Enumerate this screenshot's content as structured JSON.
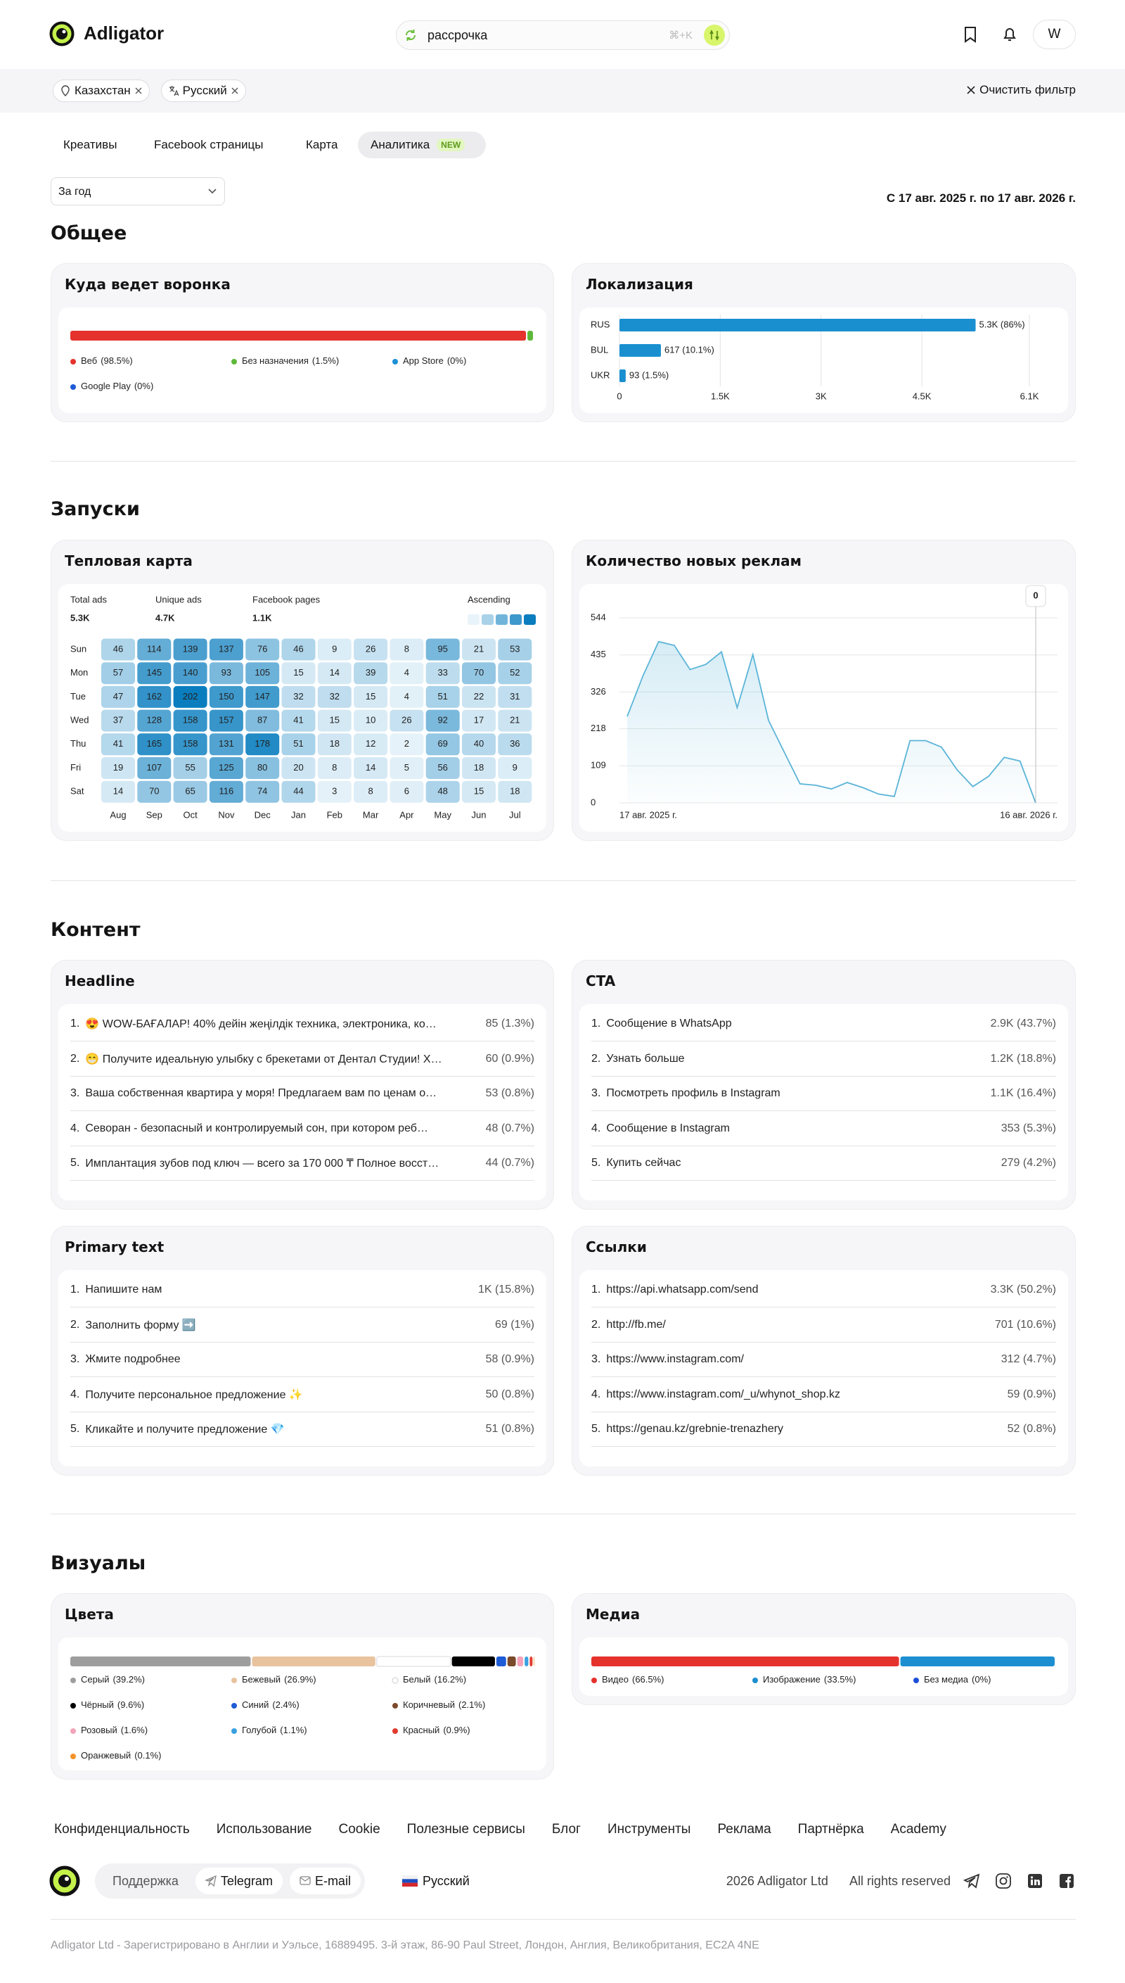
{
  "header": {
    "logo": "Adligator",
    "search": "рассрочка",
    "shortcut": "⌘+K",
    "avatar": "W"
  },
  "filters": {
    "chips": [
      "Казахстан",
      "Русский"
    ],
    "clear": "Очистить фильтр"
  },
  "tabs": {
    "items": [
      "Креативы",
      "Facebook страницы",
      "Карта",
      "Аналитика"
    ],
    "badge": "NEW",
    "active": 3
  },
  "period": {
    "select": "За год",
    "range": "С 17 авг. 2025 г. по 17 авг. 2026 г."
  },
  "sections": [
    "Общее",
    "Запуски",
    "Контент",
    "Визуалы"
  ],
  "chart_data": [
    {
      "type": "stacked_bar",
      "title": "Куда ведет воронка",
      "series": [
        {
          "name": "Веб",
          "color": "#e5322d",
          "values": [
            98.5
          ],
          "value_labels": [
            "(98.5%)"
          ]
        },
        {
          "name": "Без назначения",
          "color": "#5db83a",
          "values": [
            1.5
          ],
          "value_labels": [
            "(1.5%)"
          ]
        },
        {
          "name": "App Store",
          "color": "#1e90d6",
          "values": [
            0
          ],
          "value_labels": [
            "(0%)"
          ]
        },
        {
          "name": "Google Play",
          "color": "#1e5bd6",
          "values": [
            0
          ],
          "value_labels": [
            "(0%)"
          ]
        }
      ]
    },
    {
      "type": "bar",
      "orientation": "horizontal",
      "title": "Локализация",
      "categories": [
        "RUS",
        "BUL",
        "UKR"
      ],
      "values": [
        5300,
        617,
        93
      ],
      "value_labels": [
        "5.3K (86%)",
        "617 (10.1%)",
        "93 (1.5%)"
      ],
      "color": "#1a8fd0",
      "xlim": [
        0,
        6100
      ],
      "xticks": [
        0,
        {
          "value": 1500,
          "label": "1.5K"
        },
        {
          "value": 3000,
          "label": "3K"
        },
        {
          "value": 4500,
          "label": "4.5K"
        },
        {
          "value": 6100,
          "label": "6.1K"
        }
      ],
      "grid": true
    },
    {
      "type": "heatmap",
      "title": "Тепловая карта",
      "stats": [
        {
          "label": "Total ads",
          "value": "5.3K"
        },
        {
          "label": "Unique ads",
          "value": "4.7K"
        },
        {
          "label": "Facebook pages",
          "value": "1.1K"
        }
      ],
      "scale_label": "Ascending",
      "color": "#0a7dbe",
      "x": [
        "Aug",
        "Sep",
        "Oct",
        "Nov",
        "Dec",
        "Jan",
        "Feb",
        "Mar",
        "Apr",
        "May",
        "Jun",
        "Jul"
      ],
      "y": [
        "Sun",
        "Mon",
        "Tue",
        "Wed",
        "Thu",
        "Fri",
        "Sat"
      ],
      "values": [
        [
          46,
          114,
          139,
          137,
          76,
          46,
          9,
          26,
          8,
          95,
          21,
          53
        ],
        [
          57,
          145,
          140,
          93,
          105,
          15,
          14,
          39,
          4,
          33,
          70,
          52
        ],
        [
          47,
          162,
          202,
          150,
          147,
          32,
          32,
          15,
          4,
          51,
          22,
          31
        ],
        [
          37,
          128,
          158,
          157,
          87,
          41,
          15,
          10,
          26,
          92,
          17,
          21
        ],
        [
          41,
          165,
          158,
          131,
          178,
          51,
          18,
          12,
          2,
          69,
          40,
          36
        ],
        [
          19,
          107,
          55,
          125,
          80,
          20,
          8,
          14,
          5,
          56,
          18,
          9
        ],
        [
          14,
          70,
          65,
          116,
          74,
          44,
          3,
          8,
          6,
          48,
          15,
          18
        ]
      ]
    },
    {
      "type": "line",
      "title": "Количество новых реклам",
      "categories": [
        "17 авг. 2025 г.",
        null,
        null,
        null,
        null,
        null,
        null,
        null,
        null,
        null,
        null,
        null,
        null,
        null,
        null,
        null,
        null,
        null,
        null,
        null,
        null,
        null,
        null,
        null,
        null,
        null,
        "16 авг. 2026 г."
      ],
      "values": [
        254,
        373,
        474,
        463,
        392,
        407,
        444,
        280,
        436,
        242,
        149,
        56,
        52,
        41,
        60,
        45,
        26,
        19,
        183,
        183,
        164,
        97,
        48,
        78,
        134,
        123,
        0
      ],
      "color": "#5ab4d8",
      "ylim": [
        0,
        544
      ],
      "yticks": [
        0,
        109,
        218,
        326,
        435,
        544
      ],
      "grid": true,
      "tooltip_index": 26
    },
    {
      "type": "stacked_bar",
      "title": "Цвета",
      "series": [
        {
          "name": "Серый",
          "color": "#9e9e9e",
          "values": [
            39.2
          ],
          "value_labels": [
            "(39.2%)"
          ]
        },
        {
          "name": "Бежевый",
          "color": "#e8c39e",
          "values": [
            26.9
          ],
          "value_labels": [
            "(26.9%)"
          ]
        },
        {
          "name": "Белый",
          "color": "#ffffff",
          "values": [
            16.2
          ],
          "value_labels": [
            "(16.2%)"
          ]
        },
        {
          "name": "Чёрный",
          "color": "#000000",
          "values": [
            9.6
          ],
          "value_labels": [
            "(9.6%)"
          ]
        },
        {
          "name": "Синий",
          "color": "#1e5bd6",
          "values": [
            2.4
          ],
          "value_labels": [
            "(2.4%)"
          ]
        },
        {
          "name": "Коричневый",
          "color": "#7b4a2a",
          "values": [
            2.1
          ],
          "value_labels": [
            "(2.1%)"
          ]
        },
        {
          "name": "Розовый",
          "color": "#f4a3b8",
          "values": [
            1.6
          ],
          "value_labels": [
            "(1.6%)"
          ]
        },
        {
          "name": "Голубой",
          "color": "#3aa0e0",
          "values": [
            1.1
          ],
          "value_labels": [
            "(1.1%)"
          ]
        },
        {
          "name": "Красный",
          "color": "#e23a2e",
          "values": [
            0.9
          ],
          "value_labels": [
            "(0.9%)"
          ]
        },
        {
          "name": "Оранжевый",
          "color": "#f0932b",
          "values": [
            0.1
          ],
          "value_labels": [
            "(0.1%)"
          ]
        }
      ]
    },
    {
      "type": "stacked_bar",
      "title": "Медиа",
      "series": [
        {
          "name": "Видео",
          "color": "#e5322d",
          "values": [
            66.5
          ],
          "value_labels": [
            "(66.5%)"
          ]
        },
        {
          "name": "Изображение",
          "color": "#1d8fd1",
          "values": [
            33.5
          ],
          "value_labels": [
            "(33.5%)"
          ]
        },
        {
          "name": "Без медиа",
          "color": "#1d4fd8",
          "values": [
            0
          ],
          "value_labels": [
            "(0%)"
          ]
        }
      ]
    }
  ],
  "content": [
    {
      "title": "Headline",
      "rows": [
        {
          "rank": "1.",
          "text": "😍 WOW-БАҒАЛАР! 40% дейін жеңілдік техника, электроника, ко…",
          "count": "85 (1.3%)"
        },
        {
          "rank": "2.",
          "text": "😁 Получите идеальную улыбку с брекетами от Дентал Студии! Х…",
          "count": "60 (0.9%)"
        },
        {
          "rank": "3.",
          "text": "Ваша собственная квартира у моря! Предлагаем вам по ценам о…",
          "count": "53 (0.8%)"
        },
        {
          "rank": "4.",
          "text": "Севоран - безопасный и контролируемый сон, при котором реб…",
          "count": "48 (0.7%)"
        },
        {
          "rank": "5.",
          "text": "Имплантация зубов под ключ — всего за 170 000 ₸ Полное восст…",
          "count": "44 (0.7%)"
        }
      ]
    },
    {
      "title": "CTA",
      "rows": [
        {
          "rank": "1.",
          "text": "Сообщение в WhatsApp",
          "count": "2.9K (43.7%)"
        },
        {
          "rank": "2.",
          "text": "Узнать больше",
          "count": "1.2K (18.8%)"
        },
        {
          "rank": "3.",
          "text": "Посмотреть профиль в Instagram",
          "count": "1.1K (16.4%)"
        },
        {
          "rank": "4.",
          "text": "Сообщение в Instagram",
          "count": "353 (5.3%)"
        },
        {
          "rank": "5.",
          "text": "Купить сейчас",
          "count": "279 (4.2%)"
        }
      ]
    },
    {
      "title": "Primary text",
      "rows": [
        {
          "rank": "1.",
          "text": "Напишите нам",
          "count": "1K (15.8%)"
        },
        {
          "rank": "2.",
          "text": "Заполнить форму ➡️",
          "count": "69 (1%)"
        },
        {
          "rank": "3.",
          "text": "Жмите подробнее",
          "count": "58 (0.9%)"
        },
        {
          "rank": "4.",
          "text": "Получите персональное предложение ✨",
          "count": "50 (0.8%)"
        },
        {
          "rank": "5.",
          "text": "Кликайте и получите предложение 💎",
          "count": "51 (0.8%)"
        }
      ]
    },
    {
      "title": "Ссылки",
      "rows": [
        {
          "rank": "1.",
          "text": "https://api.whatsapp.com/send",
          "count": "3.3K (50.2%)"
        },
        {
          "rank": "2.",
          "text": "http://fb.me/",
          "count": "701 (10.6%)"
        },
        {
          "rank": "3.",
          "text": "https://www.instagram.com/",
          "count": "312 (4.7%)"
        },
        {
          "rank": "4.",
          "text": "https://www.instagram.com/_u/whynot_shop.kz",
          "count": "59 (0.9%)"
        },
        {
          "rank": "5.",
          "text": "https://genau.kz/grebnie-trenazhery",
          "count": "52 (0.8%)"
        }
      ]
    }
  ],
  "footer": {
    "links": [
      "Конфиденциальность",
      "Использование",
      "Cookie",
      "Полезные сервисы",
      "Блог",
      "Инструменты",
      "Реклама",
      "Партнёрка",
      "Academy"
    ],
    "support": "Поддержка",
    "telegram": "Telegram",
    "email": "E-mail",
    "language": "Русский",
    "copyright": "2026 Adligator Ltd",
    "rights": "All rights reserved",
    "address": "Adligator Ltd - Зарегистрировано в Англии и Уэльсе, 16889495. 3-й этаж, 86-90 Paul Street, Лондон, Англия, Великобритания, EC2A 4NE"
  }
}
